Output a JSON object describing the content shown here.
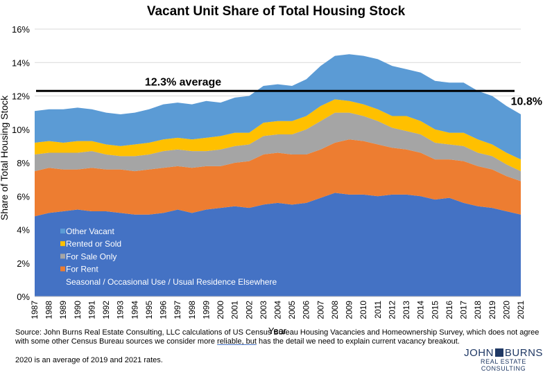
{
  "chart_data": {
    "type": "area",
    "stacked": true,
    "title": "Vacant Unit Share of Total Housing Stock",
    "xlabel": "Year",
    "ylabel": "Share of Total Housing Stock",
    "ylim": [
      0,
      16
    ],
    "yticks": [
      "0%",
      "2%",
      "4%",
      "6%",
      "8%",
      "10%",
      "12%",
      "14%",
      "16%"
    ],
    "grid": true,
    "legend_position": "bottom-left",
    "x": [
      "1987",
      "1988",
      "1989",
      "1990",
      "1991",
      "1992",
      "1993",
      "1994",
      "1995",
      "1996",
      "1997",
      "1998",
      "1999",
      "2000",
      "2001",
      "2002",
      "2003",
      "2004",
      "2005",
      "2006",
      "2007",
      "2008",
      "2009",
      "2010",
      "2011",
      "2012",
      "2013",
      "2014",
      "2015",
      "2016",
      "2017",
      "2018",
      "2019",
      "2020",
      "2021"
    ],
    "series": [
      {
        "name": "Seasonal / Occasional Use / Usual Residence Elsewhere",
        "color": "#4472c4",
        "values": [
          4.8,
          5.0,
          5.1,
          5.2,
          5.1,
          5.1,
          5.0,
          4.9,
          4.9,
          5.0,
          5.2,
          5.0,
          5.2,
          5.3,
          5.4,
          5.3,
          5.5,
          5.6,
          5.5,
          5.6,
          5.9,
          6.2,
          6.1,
          6.1,
          6.0,
          6.1,
          6.1,
          6.0,
          5.8,
          5.9,
          5.6,
          5.4,
          5.3,
          5.1,
          4.9
        ]
      },
      {
        "name": "For Rent",
        "color": "#ed7d31",
        "values": [
          2.7,
          2.7,
          2.5,
          2.4,
          2.6,
          2.5,
          2.6,
          2.6,
          2.7,
          2.7,
          2.6,
          2.7,
          2.6,
          2.5,
          2.6,
          2.8,
          3.0,
          3.0,
          3.0,
          2.9,
          2.9,
          3.0,
          3.3,
          3.2,
          3.1,
          2.8,
          2.7,
          2.6,
          2.4,
          2.3,
          2.5,
          2.4,
          2.3,
          2.1,
          2.0
        ]
      },
      {
        "name": "For Sale Only",
        "color": "#a5a5a5",
        "values": [
          1.0,
          0.9,
          1.0,
          1.0,
          1.0,
          0.9,
          0.8,
          0.9,
          0.9,
          1.0,
          1.0,
          1.0,
          0.9,
          1.0,
          1.0,
          1.0,
          1.1,
          1.1,
          1.2,
          1.5,
          1.7,
          1.8,
          1.6,
          1.5,
          1.4,
          1.2,
          1.1,
          1.1,
          1.0,
          0.9,
          0.9,
          0.8,
          0.8,
          0.7,
          0.6
        ]
      },
      {
        "name": "Rented or Sold",
        "color": "#ffc000",
        "values": [
          0.7,
          0.7,
          0.6,
          0.7,
          0.6,
          0.6,
          0.6,
          0.7,
          0.7,
          0.7,
          0.7,
          0.7,
          0.8,
          0.8,
          0.8,
          0.7,
          0.8,
          0.8,
          0.8,
          0.8,
          0.9,
          0.8,
          0.7,
          0.7,
          0.7,
          0.7,
          0.9,
          0.8,
          0.8,
          0.7,
          0.8,
          0.8,
          0.7,
          0.7,
          0.7
        ]
      },
      {
        "name": "Other Vacant",
        "color": "#5b9bd5",
        "values": [
          1.9,
          1.9,
          2.0,
          2.0,
          1.9,
          1.9,
          1.9,
          1.9,
          2.0,
          2.1,
          2.1,
          2.1,
          2.2,
          2.0,
          2.1,
          2.2,
          2.2,
          2.2,
          2.1,
          2.2,
          2.4,
          2.6,
          2.8,
          2.9,
          3.0,
          3.0,
          2.8,
          2.9,
          2.9,
          3.0,
          3.0,
          2.9,
          2.9,
          2.8,
          2.7
        ]
      }
    ],
    "annotations": [
      {
        "type": "hline",
        "y": 12.3,
        "label": "12.3% average"
      },
      {
        "type": "point_label",
        "x": "2021",
        "y": 10.8,
        "label": "10.8%"
      }
    ]
  },
  "footer": {
    "source_before": "Source: John Burns Real Estate Consulting, LLC calculations of US Census Bureau Housing Vacancies and Homeownership Survey, which does not agree with some other Census Bureau sources we consider more ",
    "source_link": "reliable, but",
    "source_after": " has the detail we need to explain current vacancy breakout.",
    "note": "2020 is an average of 2019 and 2021 rates."
  },
  "logo": {
    "left": "JOHN",
    "right": "BURNS",
    "tagline": "REAL ESTATE CONSULTING"
  }
}
